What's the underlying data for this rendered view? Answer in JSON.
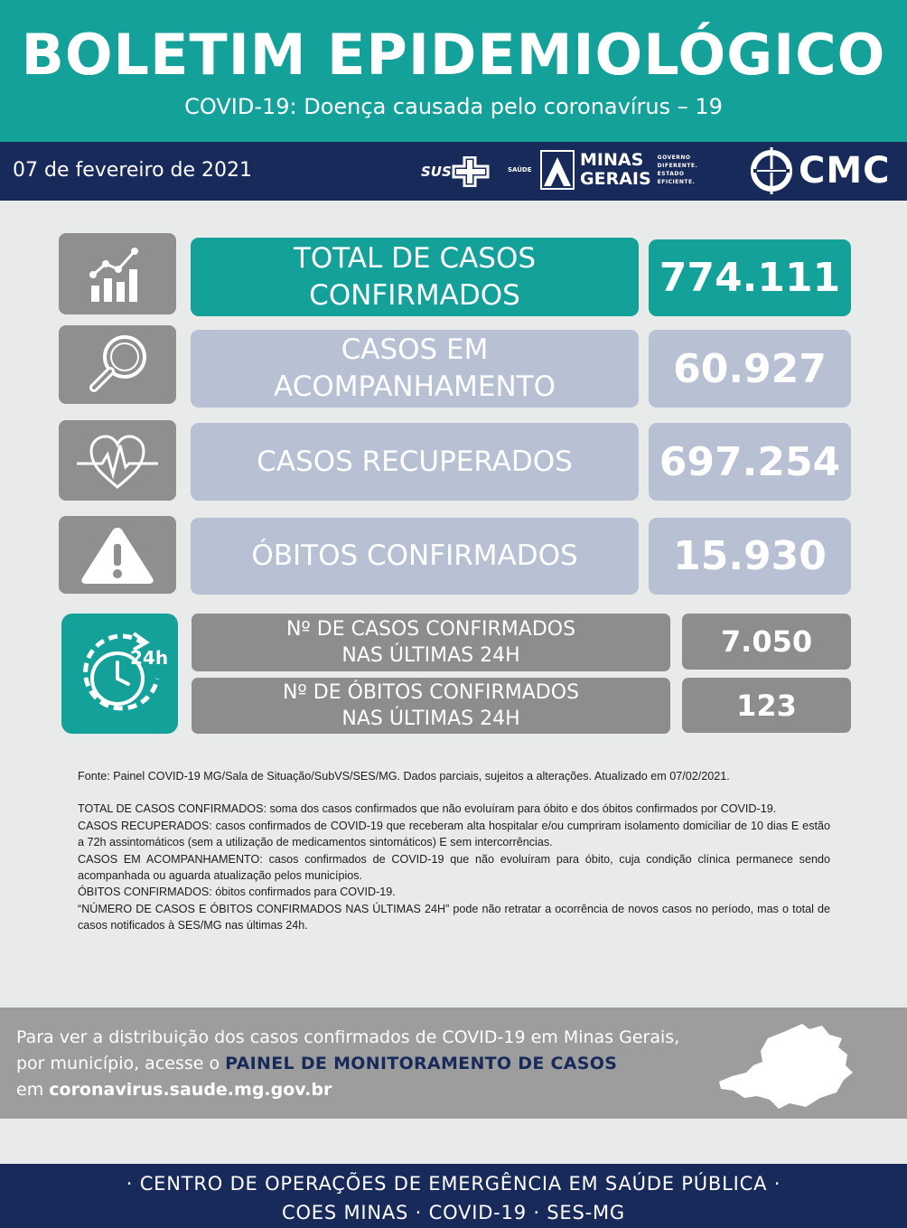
{
  "header": {
    "title": "BOLETIM EPIDEMIOLÓGICO",
    "subtitle": "COVID-19: Doença causada pelo coronavírus – 19"
  },
  "bar": {
    "date": "07 de fevereiro de 2021",
    "sus_logo": "SUS",
    "saude_label": "SAÚDE",
    "mg_logo_line1": "MINAS",
    "mg_logo_line2": "GERAIS",
    "mg_tagline_1": "GOVERNO",
    "mg_tagline_2": "DIFERENTE.",
    "mg_tagline_3": "ESTADO",
    "mg_tagline_4": "EFICIENTE.",
    "cmc_logo": "CMC"
  },
  "stats": [
    {
      "label_1": "TOTAL DE CASOS",
      "label_2": "CONFIRMADOS",
      "value": "774.111",
      "icon": "bar-chart-growth-icon",
      "color": "#13a19a"
    },
    {
      "label_1": "CASOS EM",
      "label_2": "ACOMPANHAMENTO",
      "value": "60.927",
      "icon": "magnifier-icon",
      "color": "#b7c1d3"
    },
    {
      "label_1": "CASOS RECUPERADOS",
      "value": "697.254",
      "icon": "heartbeat-icon",
      "color": "#b7c1d3"
    },
    {
      "label_1": "ÓBITOS CONFIRMADOS",
      "value": "15.930",
      "icon": "warning-icon",
      "color": "#b7c1d3"
    }
  ],
  "last24h": {
    "icon": "clock-24h-icon",
    "cases_label_1": "Nº DE CASOS  CONFIRMADOS",
    "cases_label_2": "NAS ÚLTIMAS 24H",
    "cases_value": "7.050",
    "deaths_label_1": "Nº DE ÓBITOS  CONFIRMADOS",
    "deaths_label_2": "NAS ÚLTIMAS 24H",
    "deaths_value": "123"
  },
  "notes": {
    "source": "Fonte: Painel COVID-19 MG/Sala de Situação/SubVS/SES/MG. Dados parciais, sujeitos a alterações. Atualizado em 07/02/2021.",
    "total": "TOTAL DE  CASOS CONFIRMADOS: soma dos casos confirmados que não evoluíram para óbito e dos óbitos confirmados por COVID-19.",
    "recovered": "CASOS RECUPERADOS: casos confirmados de COVID-19 que receberam alta hospitalar e/ou cumpriram isolamento domiciliar de 10 dias E estão a 72h assintomáticos (sem a utilização de medicamentos sintomáticos) E sem intercorrências.",
    "monitoring": "CASOS EM ACOMPANHAMENTO: casos confirmados de COVID-19 que não evoluíram para óbito, cuja condição clínica permanece sendo acompanhada ou aguarda atualização pelos municípios.",
    "deaths": "ÓBITOS CONFIRMADOS: óbitos confirmados para COVID-19.",
    "last24": "“NÚMERO DE CASOS E ÓBITOS CONFIRMADOS NAS ÚLTIMAS 24H” pode não retratar a ocorrência de novos casos no período, mas o total de casos notificados à SES/MG nas últimas 24h."
  },
  "info": {
    "text_1": "Para ver a distribuição  dos casos confirmados de COVID-19 em Minas Gerais, por município, acesse o ",
    "link": "PAINEL DE MONITORAMENTO DE CASOS",
    "text_2": "em ",
    "url": "coronavirus.saude.mg.gov.br",
    "map_icon": "minas-gerais-map-icon"
  },
  "footer": {
    "line_1": "· CENTRO DE OPERAÇÕES DE EMERGÊNCIA EM SAÚDE PÚBLICA ·",
    "line_2": "COES MINAS · COVID-19 · SES-MG"
  }
}
